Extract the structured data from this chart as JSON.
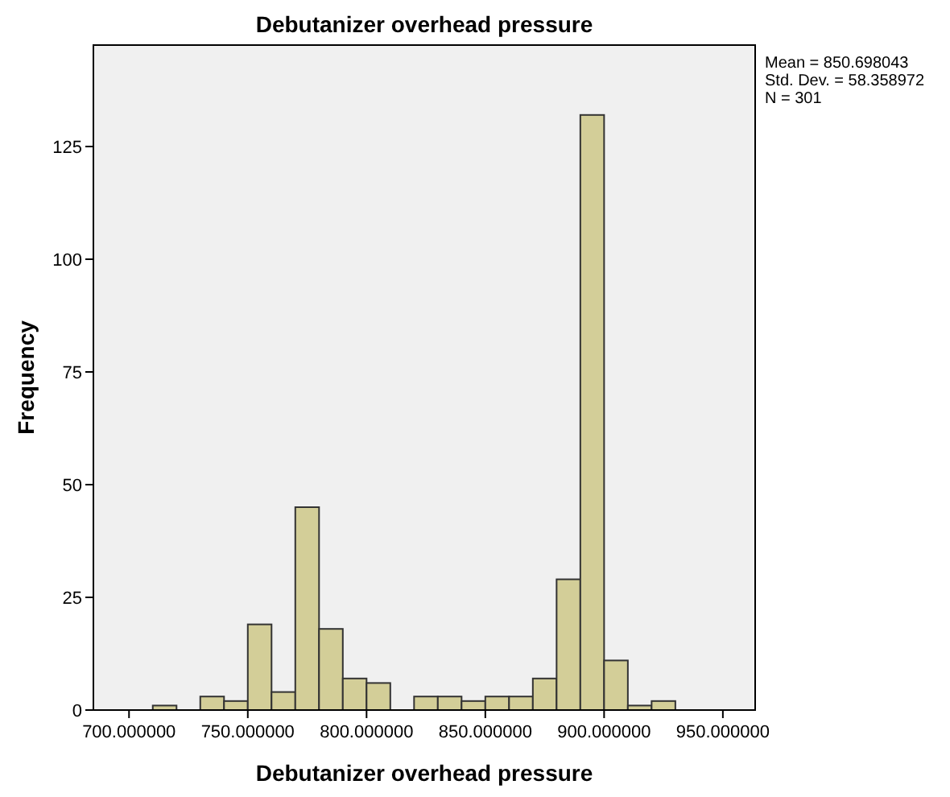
{
  "chart_data": {
    "type": "histogram",
    "title": "Debutanizer overhead pressure",
    "xlabel": "Debutanizer overhead pressure",
    "ylabel": "Frequency",
    "bins": [
      710,
      720,
      730,
      740,
      750,
      760,
      770,
      780,
      790,
      800,
      810,
      820,
      830,
      840,
      850,
      860,
      870,
      880,
      890,
      900,
      910,
      920,
      930
    ],
    "values": [
      1,
      0,
      3,
      2,
      19,
      4,
      45,
      18,
      7,
      6,
      0,
      3,
      3,
      2,
      3,
      3,
      7,
      29,
      132,
      11,
      1,
      2
    ],
    "color": "#d3ce98",
    "xlim": [
      685,
      963.6
    ],
    "xticks": [
      {
        "value": 700,
        "label": "700.000000"
      },
      {
        "value": 750,
        "label": "750.000000"
      },
      {
        "value": 800,
        "label": "800.000000"
      },
      {
        "value": 850,
        "label": "850.000000"
      },
      {
        "value": 900,
        "label": "900.000000"
      },
      {
        "value": 950,
        "label": "950.000000"
      }
    ],
    "ylim": [
      0,
      147.5
    ],
    "yticks": [
      0,
      25,
      50,
      75,
      100,
      125
    ],
    "grid": false,
    "annotations": [
      "Mean = 850.698043",
      "Std. Dev. = 58.358972",
      "N = 301"
    ]
  }
}
